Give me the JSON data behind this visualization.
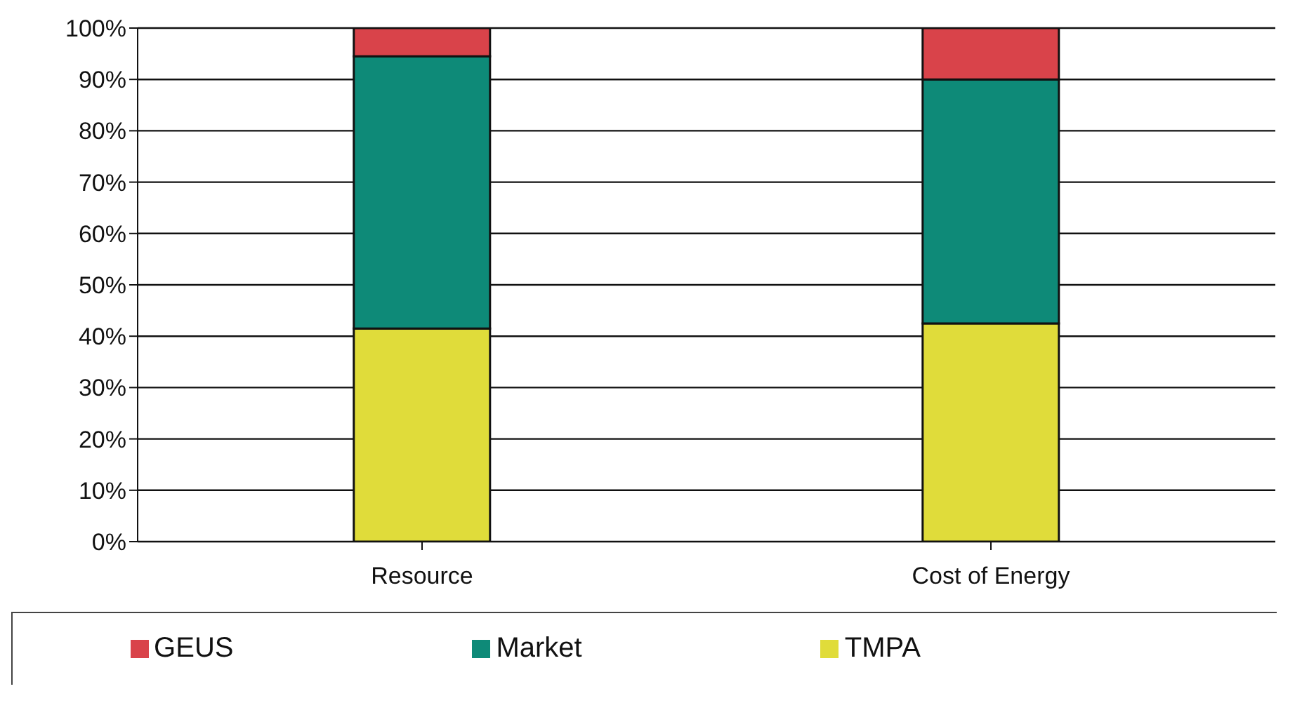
{
  "chart_data": {
    "type": "bar",
    "stacked": true,
    "categories": [
      "Resource",
      "Cost of Energy"
    ],
    "series": [
      {
        "name": "TMPA",
        "color": "#e0dc3a",
        "values": [
          41.5,
          42.5
        ]
      },
      {
        "name": "Market",
        "color": "#0e8a78",
        "values": [
          53,
          47.5
        ]
      },
      {
        "name": "GEUS",
        "color": "#d9434a",
        "values": [
          5.5,
          10
        ]
      }
    ],
    "ylim": [
      0,
      100
    ],
    "yticks": [
      {
        "value": 0,
        "label": "0%"
      },
      {
        "value": 10,
        "label": "10%"
      },
      {
        "value": 20,
        "label": "20%"
      },
      {
        "value": 30,
        "label": "30%"
      },
      {
        "value": 40,
        "label": "40%"
      },
      {
        "value": 50,
        "label": "50%"
      },
      {
        "value": 60,
        "label": "60%"
      },
      {
        "value": 70,
        "label": "70%"
      },
      {
        "value": 80,
        "label": "80%"
      },
      {
        "value": 90,
        "label": "90%"
      },
      {
        "value": 100,
        "label": "100%"
      }
    ],
    "grid": "y",
    "legend": "bottom"
  }
}
